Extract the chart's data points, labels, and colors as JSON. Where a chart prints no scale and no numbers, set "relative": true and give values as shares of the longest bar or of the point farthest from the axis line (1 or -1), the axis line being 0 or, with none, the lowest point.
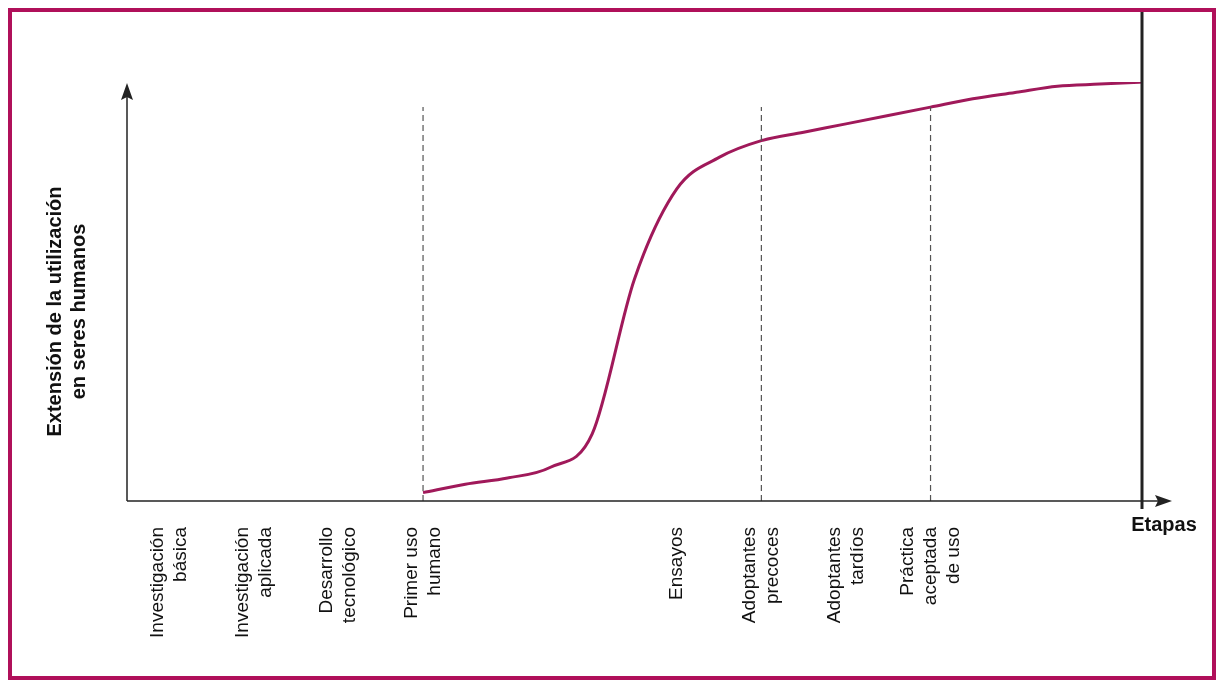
{
  "chart_data": {
    "type": "line",
    "relative": true,
    "xlabel": "Etapas",
    "ylabel": "Extensión de la utilización en seres humanos",
    "categories": [
      null,
      "Investigación básica",
      null,
      "Investigación aplicada",
      null,
      "Desarrollo tecnológico",
      null,
      "Primer uso humano",
      null,
      null,
      null,
      null,
      null,
      "Ensayos",
      null,
      "Adoptantes precoces",
      null,
      "Adoptantes tardíos",
      null,
      "Práctica aceptada de uso",
      null,
      null,
      null,
      null,
      null
    ],
    "series": [
      {
        "color": "#a0195a",
        "values": [
          null,
          null,
          null,
          null,
          null,
          null,
          null,
          0.02,
          0.04,
          0.055,
          0.08,
          0.16,
          0.53,
          0.745,
          0.82,
          0.86,
          0.88,
          0.9,
          0.92,
          0.94,
          0.96,
          0.975,
          0.99,
          0.995,
          1
        ]
      }
    ],
    "ref_lines": [
      {
        "axis": "x",
        "value": "Primer uso humano",
        "color": "#555555",
        "line_style": "dashed"
      },
      {
        "axis": "x",
        "value": "Adoptantes precoces",
        "color": "#555555",
        "line_style": "dashed"
      },
      {
        "axis": "x",
        "value": "Práctica aceptada de uso",
        "color": "#555555",
        "line_style": "dashed"
      }
    ],
    "grid": false,
    "legend": false,
    "marker": "none",
    "line_style": "solid"
  }
}
